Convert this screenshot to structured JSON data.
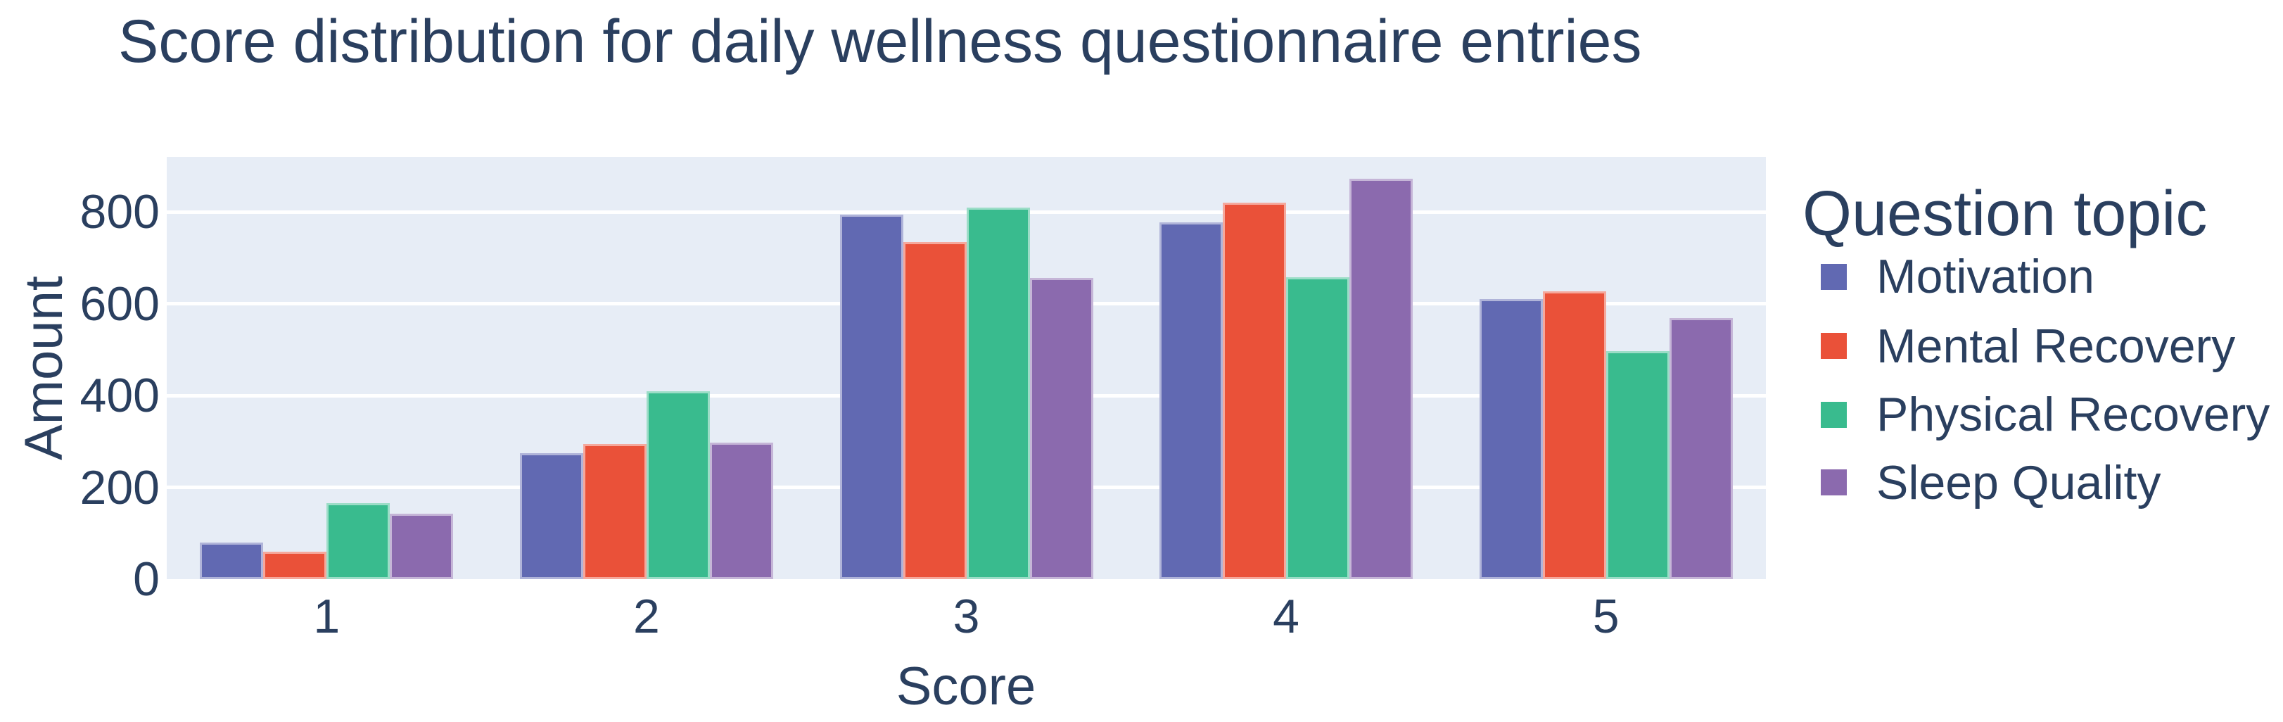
{
  "title": "Score distribution for daily wellness questionnaire entries",
  "colors": {
    "text": "#2A3F5F",
    "plot_bg": "#E7EDF6",
    "grid": "#FFFFFF",
    "page_bg": "#FFFFFF"
  },
  "chart_data": {
    "type": "bar",
    "title": "Score distribution for daily wellness questionnaire entries",
    "xlabel": "Score",
    "ylabel": "Amount",
    "categories": [
      "1",
      "2",
      "3",
      "4",
      "5"
    ],
    "series": [
      {
        "name": "Motivation",
        "color": "#6169B2",
        "values": [
          80,
          275,
          795,
          778,
          611
        ]
      },
      {
        "name": "Mental Recovery",
        "color": "#EA5139",
        "values": [
          60,
          295,
          735,
          821,
          627
        ]
      },
      {
        "name": "Physical Recovery",
        "color": "#39BB8E",
        "values": [
          166,
          410,
          809,
          658,
          497
        ]
      },
      {
        "name": "Sleep Quality",
        "color": "#8B6AAE",
        "values": [
          143,
          297,
          656,
          872,
          569
        ]
      }
    ],
    "ylim": [
      0,
      920
    ],
    "yticks": [
      "0",
      "200",
      "400",
      "600",
      "800"
    ],
    "grid": true,
    "legend_title": "Question topic",
    "legend_position": "right"
  }
}
